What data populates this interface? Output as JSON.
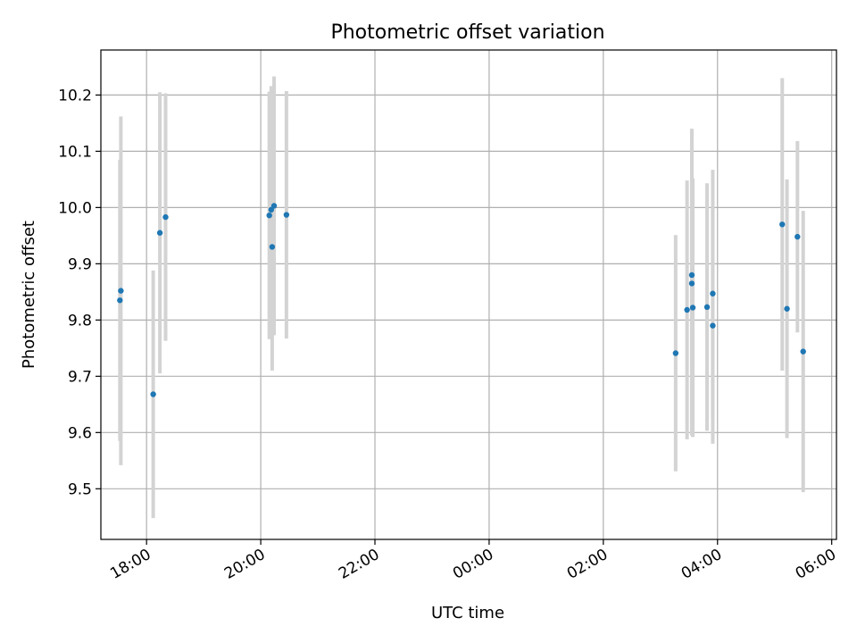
{
  "chart_data": {
    "type": "scatter",
    "title": "Photometric offset variation",
    "xlabel": "UTC time",
    "ylabel": "Photometric offset",
    "x_is_time": true,
    "xlim": [
      "17:12",
      "06:05"
    ],
    "ylim": [
      9.41,
      10.28
    ],
    "grid": true,
    "x_ticks": [
      {
        "value": "18:00",
        "label": "18:00"
      },
      {
        "value": "20:00",
        "label": "20:00"
      },
      {
        "value": "22:00",
        "label": "22:00"
      },
      {
        "value": "00:00",
        "label": "00:00"
      },
      {
        "value": "02:00",
        "label": "02:00"
      },
      {
        "value": "04:00",
        "label": "04:00"
      },
      {
        "value": "06:00",
        "label": "06:00"
      }
    ],
    "y_ticks": [
      {
        "value": 9.5,
        "label": "9.5"
      },
      {
        "value": 9.6,
        "label": "9.6"
      },
      {
        "value": 9.7,
        "label": "9.7"
      },
      {
        "value": 9.8,
        "label": "9.8"
      },
      {
        "value": 9.9,
        "label": "9.9"
      },
      {
        "value": 10.0,
        "label": "10.0"
      },
      {
        "value": 10.1,
        "label": "10.1"
      },
      {
        "value": 10.2,
        "label": "10.2"
      }
    ],
    "colors": {
      "points": "#1f77b4",
      "error_bars": "#d3d3d3",
      "grid": "#b0b0b0",
      "axes": "#000000"
    },
    "points": [
      {
        "x": "17:32",
        "y": 9.835,
        "yerr": 0.25
      },
      {
        "x": "17:33",
        "y": 9.852,
        "yerr": 0.31
      },
      {
        "x": "18:07",
        "y": 9.668,
        "yerr": 0.22
      },
      {
        "x": "18:14",
        "y": 9.955,
        "yerr": 0.25
      },
      {
        "x": "18:20",
        "y": 9.983,
        "yerr": 0.22
      },
      {
        "x": "20:09",
        "y": 9.986,
        "yerr": 0.22
      },
      {
        "x": "20:11",
        "y": 9.996,
        "yerr": 0.22
      },
      {
        "x": "20:12",
        "y": 9.93,
        "yerr": 0.22
      },
      {
        "x": "20:14",
        "y": 10.003,
        "yerr": 0.23
      },
      {
        "x": "20:27",
        "y": 9.987,
        "yerr": 0.22
      },
      {
        "x": "03:16",
        "y": 9.741,
        "yerr": 0.21
      },
      {
        "x": "03:28",
        "y": 9.818,
        "yerr": 0.23
      },
      {
        "x": "03:33",
        "y": 9.88,
        "yerr": 0.26
      },
      {
        "x": "03:33",
        "y": 9.865,
        "yerr": 0.27
      },
      {
        "x": "03:34",
        "y": 9.822,
        "yerr": 0.23
      },
      {
        "x": "03:49",
        "y": 9.823,
        "yerr": 0.22
      },
      {
        "x": "03:55",
        "y": 9.847,
        "yerr": 0.22
      },
      {
        "x": "03:55",
        "y": 9.79,
        "yerr": 0.21
      },
      {
        "x": "05:08",
        "y": 9.97,
        "yerr": 0.26
      },
      {
        "x": "05:13",
        "y": 9.82,
        "yerr": 0.23
      },
      {
        "x": "05:24",
        "y": 9.948,
        "yerr": 0.17
      },
      {
        "x": "05:30",
        "y": 9.744,
        "yerr": 0.25
      }
    ]
  }
}
